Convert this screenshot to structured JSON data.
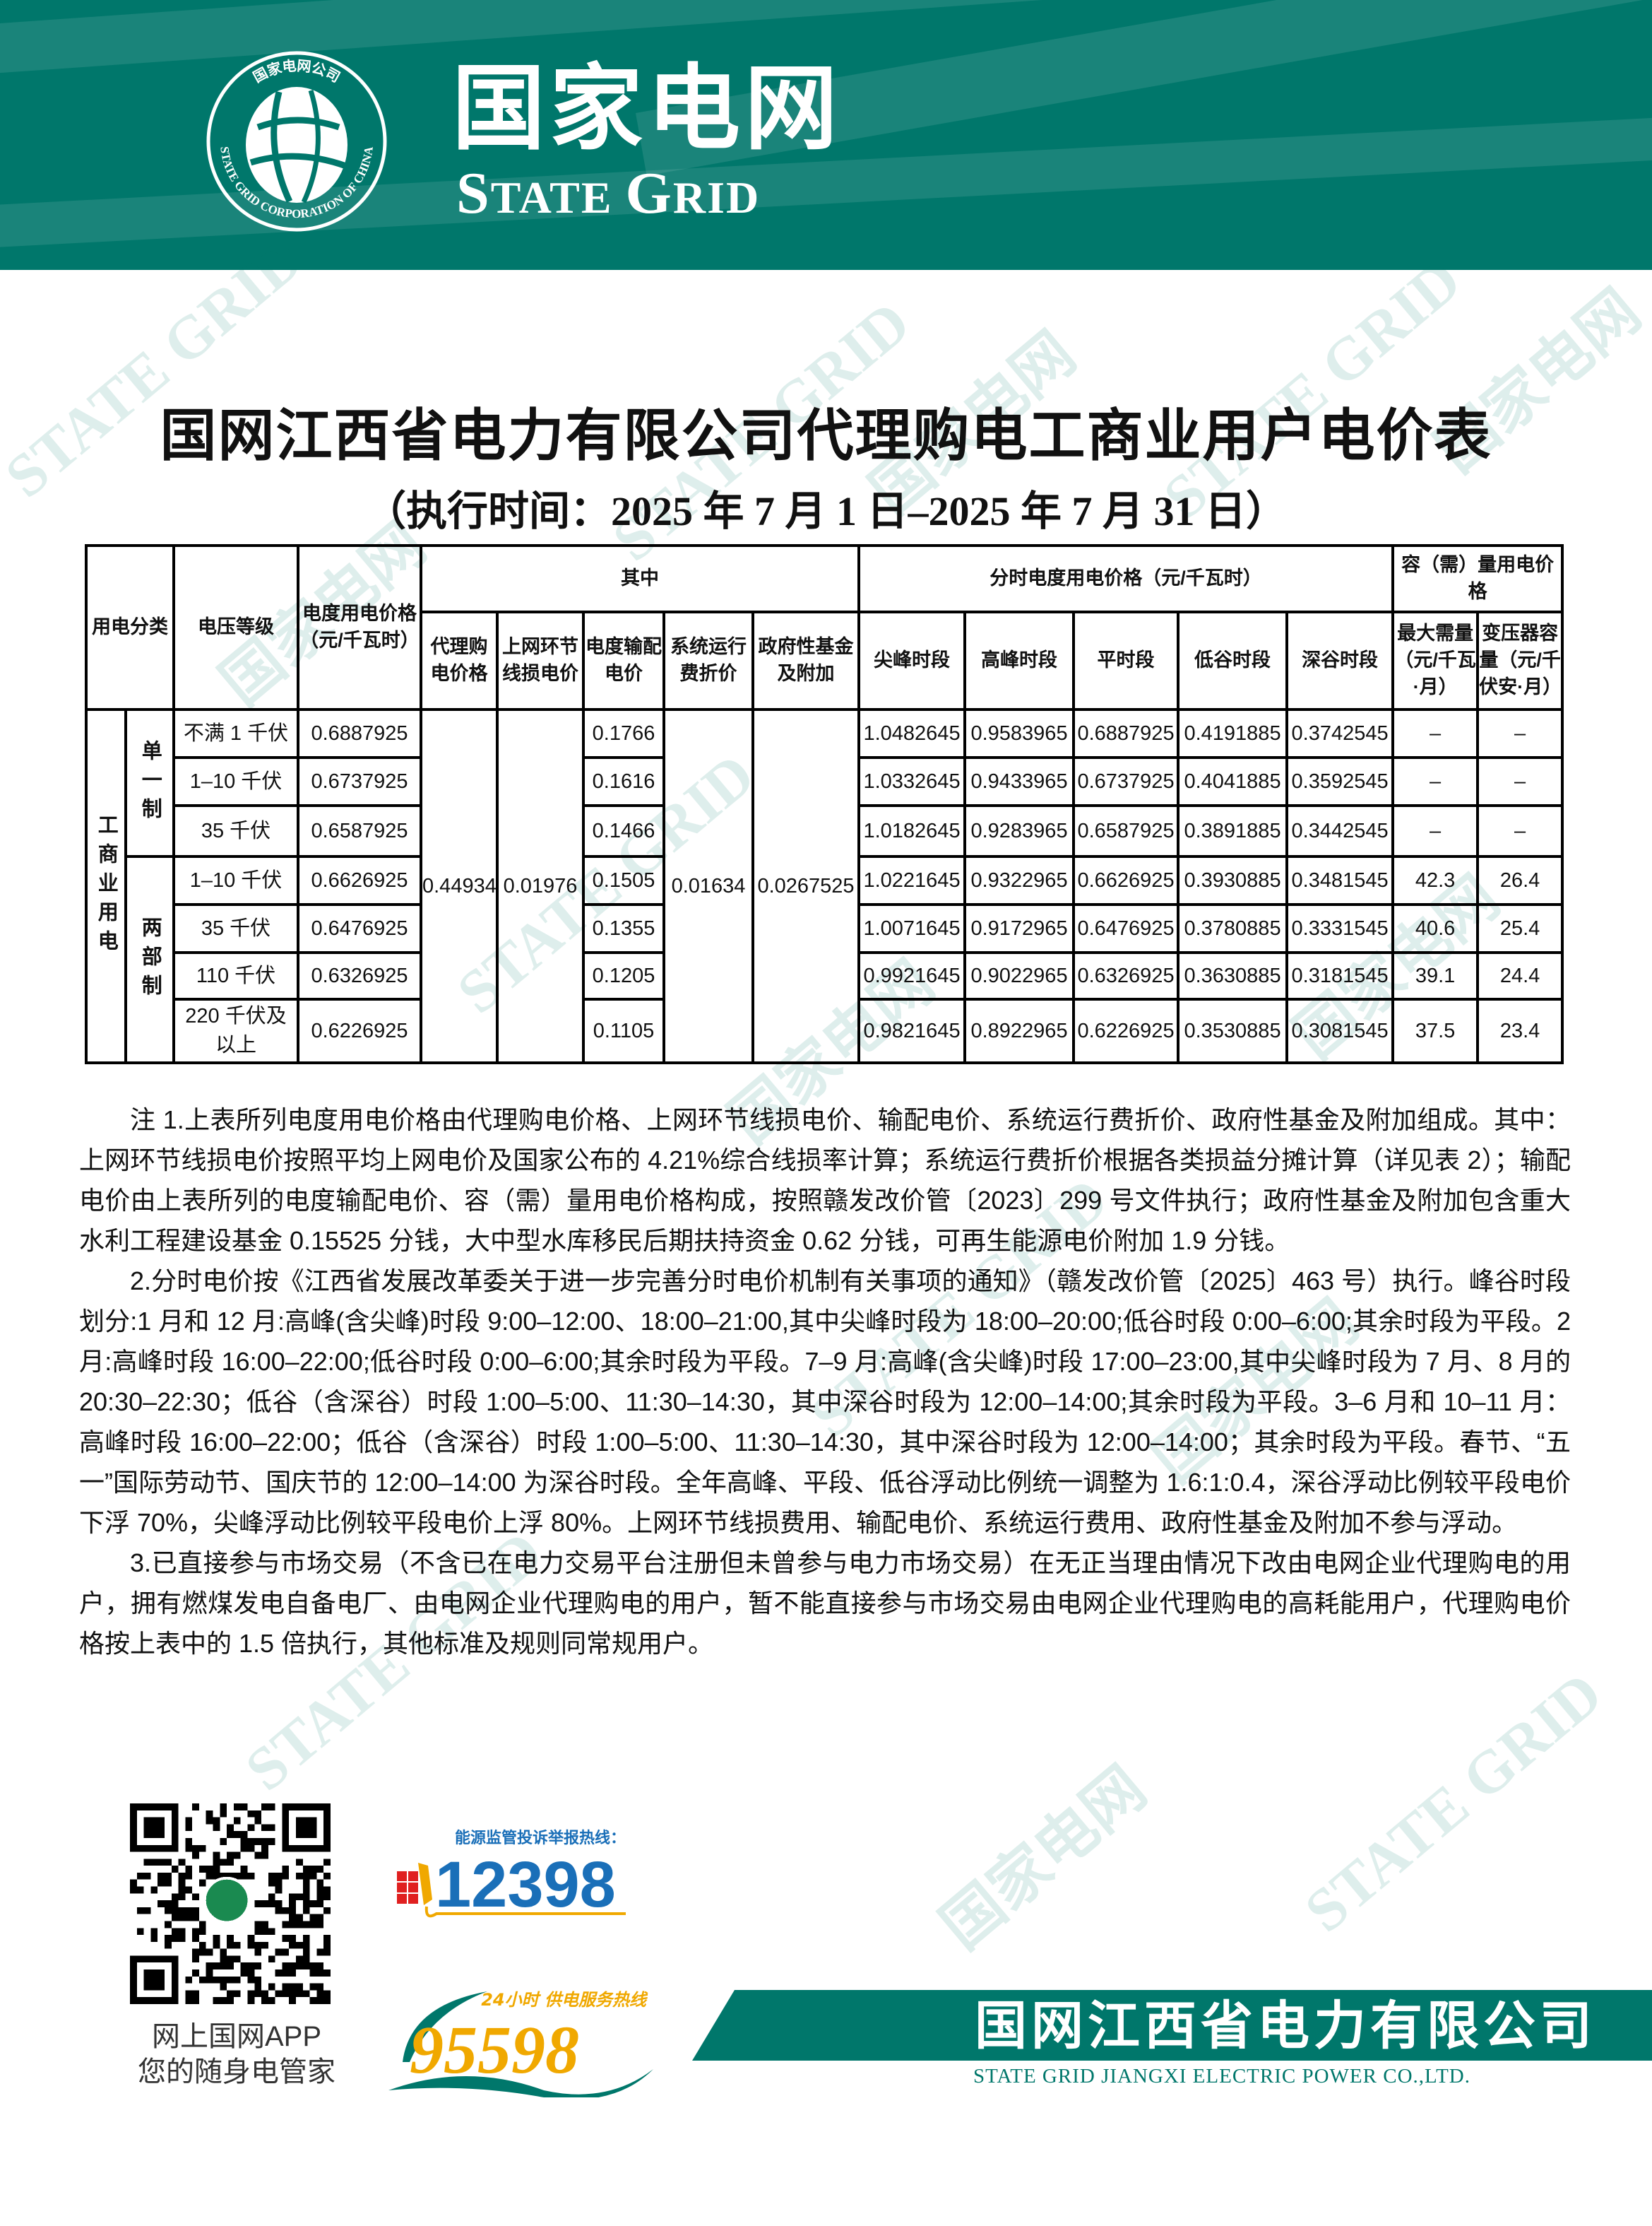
{
  "header": {
    "brand_cn": "国家电网",
    "brand_en_s": "S",
    "brand_en_tate": "TATE ",
    "brand_en_g": "G",
    "brand_en_rid": "RID",
    "logo_ring_cn": "国家电网公司",
    "logo_ring_en": "STATE GRID CORPORATION OF CHINA",
    "brand_color": "#00776b"
  },
  "watermark": {
    "cn": "国家电网",
    "en": "STATE GRID"
  },
  "title": "国网江西省电力有限公司代理购电工商业用户电价表",
  "subtitle": "（执行时间：2025 年 7 月 1 日–2025 年 7 月 31 日）",
  "table": {
    "headers": {
      "category": "用电分类",
      "voltage": "电压等级",
      "energy_price": "电度用电价格（元/千瓦时）",
      "of_which": "其中",
      "agency_price": "代理购电价格",
      "grid_loss": "上网环节线损电价",
      "transmission": "电度输配电价",
      "system_fee": "系统运行费折价",
      "gov_fund": "政府性基金及附加",
      "tou_group": "分时电度用电价格（元/千瓦时）",
      "sharp_peak": "尖峰时段",
      "peak": "高峰时段",
      "flat": "平时段",
      "valley": "低谷时段",
      "deep_valley": "深谷时段",
      "capacity_group": "容（需）量用电价格",
      "max_demand": "最大需量（元/千瓦·月）",
      "transformer": "变压器容量（元/千伏安·月）"
    },
    "category_label": "工商业用电",
    "single_label": "单一制",
    "two_part_label": "两部制",
    "shared": {
      "agency_price": "0.44934",
      "grid_loss": "0.01976",
      "system_fee": "0.01634",
      "gov_fund": "0.0267525"
    },
    "rows": [
      {
        "voltage": "不满 1 千伏",
        "energy": "0.6887925",
        "transmission": "0.1766",
        "sharp": "1.0482645",
        "peak": "0.9583965",
        "flat": "0.6887925",
        "valley": "0.4191885",
        "deep": "0.3742545",
        "demand": "–",
        "transformer": "–"
      },
      {
        "voltage": "1–10 千伏",
        "energy": "0.6737925",
        "transmission": "0.1616",
        "sharp": "1.0332645",
        "peak": "0.9433965",
        "flat": "0.6737925",
        "valley": "0.4041885",
        "deep": "0.3592545",
        "demand": "–",
        "transformer": "–"
      },
      {
        "voltage": "35 千伏",
        "energy": "0.6587925",
        "transmission": "0.1466",
        "sharp": "1.0182645",
        "peak": "0.9283965",
        "flat": "0.6587925",
        "valley": "0.3891885",
        "deep": "0.3442545",
        "demand": "–",
        "transformer": "–"
      },
      {
        "voltage": "1–10 千伏",
        "energy": "0.6626925",
        "transmission": "0.1505",
        "sharp": "1.0221645",
        "peak": "0.9322965",
        "flat": "0.6626925",
        "valley": "0.3930885",
        "deep": "0.3481545",
        "demand": "42.3",
        "transformer": "26.4"
      },
      {
        "voltage": "35 千伏",
        "energy": "0.6476925",
        "transmission": "0.1355",
        "sharp": "1.0071645",
        "peak": "0.9172965",
        "flat": "0.6476925",
        "valley": "0.3780885",
        "deep": "0.3331545",
        "demand": "40.6",
        "transformer": "25.4"
      },
      {
        "voltage": "110 千伏",
        "energy": "0.6326925",
        "transmission": "0.1205",
        "sharp": "0.9921645",
        "peak": "0.9022965",
        "flat": "0.6326925",
        "valley": "0.3630885",
        "deep": "0.3181545",
        "demand": "39.1",
        "transformer": "24.4"
      },
      {
        "voltage": "220 千伏及以上",
        "energy": "0.6226925",
        "transmission": "0.1105",
        "sharp": "0.9821645",
        "peak": "0.8922965",
        "flat": "0.6226925",
        "valley": "0.3530885",
        "deep": "0.3081545",
        "demand": "37.5",
        "transformer": "23.4"
      }
    ]
  },
  "notes": [
    "注 1.上表所列电度用电价格由代理购电价格、上网环节线损电价、输配电价、系统运行费折价、政府性基金及附加组成。其中：上网环节线损电价按照平均上网电价及国家公布的 4.21%综合线损率计算；系统运行费折价根据各类损益分摊计算（详见表 2）；输配电价由上表所列的电度输配电价、容（需）量用电价格构成，按照赣发改价管〔2023〕299 号文件执行；政府性基金及附加包含重大水利工程建设基金 0.15525 分钱，大中型水库移民后期扶持资金 0.62 分钱，可再生能源电价附加 1.9 分钱。",
    "2.分时电价按《江西省发展改革委关于进一步完善分时电价机制有关事项的通知》（赣发改价管〔2025〕463 号）执行。峰谷时段划分:1 月和 12 月:高峰(含尖峰)时段 9:00–12:00、18:00–21:00,其中尖峰时段为 18:00–20:00;低谷时段 0:00–6:00;其余时段为平段。2 月:高峰时段 16:00–22:00;低谷时段 0:00–6:00;其余时段为平段。7–9 月:高峰(含尖峰)时段 17:00–23:00,其中尖峰时段为 7 月、8 月的 20:30–22:30；低谷（含深谷）时段 1:00–5:00、11:30–14:30，其中深谷时段为 12:00–14:00;其余时段为平段。3–6 月和 10–11 月：高峰时段 16:00–22:00；低谷（含深谷）时段 1:00–5:00、11:30–14:30，其中深谷时段为 12:00–14:00；其余时段为平段。春节、“五一”国际劳动节、国庆节的 12:00–14:00 为深谷时段。全年高峰、平段、低谷浮动比例统一调整为 1.6:1:0.4，深谷浮动比例较平段电价下浮 70%，尖峰浮动比例较平段电价上浮 80%。上网环节线损费用、输配电价、系统运行费用、政府性基金及附加不参与浮动。",
    "3.已直接参与市场交易（不含已在电力交易平台注册但未曾参与电力市场交易）在无正当理由情况下改由电网企业代理购电的用户，拥有燃煤发电自备电厂、由电网企业代理购电的用户，暂不能直接参与市场交易由电网企业代理购电的高耗能用户，代理购电价格按上表中的 1.5 倍执行，其他标准及规则同常规用户。"
  ],
  "footer": {
    "app_line1": "网上国网APP",
    "app_line2": "您的随身电管家",
    "hotline1_label": "能源监管投诉举报热线：",
    "hotline1_number": "12398",
    "hotline2_label": "24小时 供电服务热线",
    "hotline2_number": "95598",
    "company_cn": "国网江西省电力有限公司",
    "company_en": "STATE GRID JIANGXI ELECTRIC POWER CO.,LTD.",
    "colors": {
      "hotline_blue": "#1a6fb8",
      "hotline_orange": "#f0a800",
      "teal": "#00776b"
    }
  }
}
